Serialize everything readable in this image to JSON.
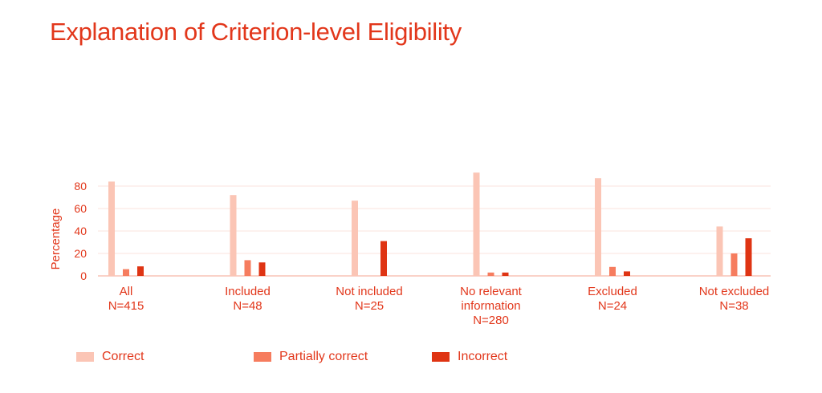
{
  "title": "Explanation of Criterion-level Eligibility",
  "chart_data": {
    "type": "bar",
    "title": "Explanation of Criterion-level Eligibility",
    "xlabel": "",
    "ylabel": "Percentage",
    "ylim": [
      0,
      95
    ],
    "yticks": [
      0,
      20,
      40,
      60,
      80
    ],
    "grid": true,
    "legend_position": "bottom",
    "categories": [
      [
        "All",
        "N=415"
      ],
      [
        "Included",
        "N=48"
      ],
      [
        "Not included",
        "N=25"
      ],
      [
        "No relevant",
        "information",
        "N=280"
      ],
      [
        "Excluded",
        "N=24"
      ],
      [
        "Not excluded",
        "N=38"
      ]
    ],
    "series": [
      {
        "name": "Correct",
        "color": "#fbc5b5",
        "values": [
          84,
          72,
          67,
          92,
          87,
          44
        ]
      },
      {
        "name": "Partially correct",
        "color": "#f67c5e",
        "values": [
          6,
          14,
          0,
          3,
          8,
          20
        ]
      },
      {
        "name": "Incorrect",
        "color": "#df3413",
        "values": [
          8.5,
          12,
          31,
          3,
          4,
          33.5
        ]
      }
    ]
  }
}
